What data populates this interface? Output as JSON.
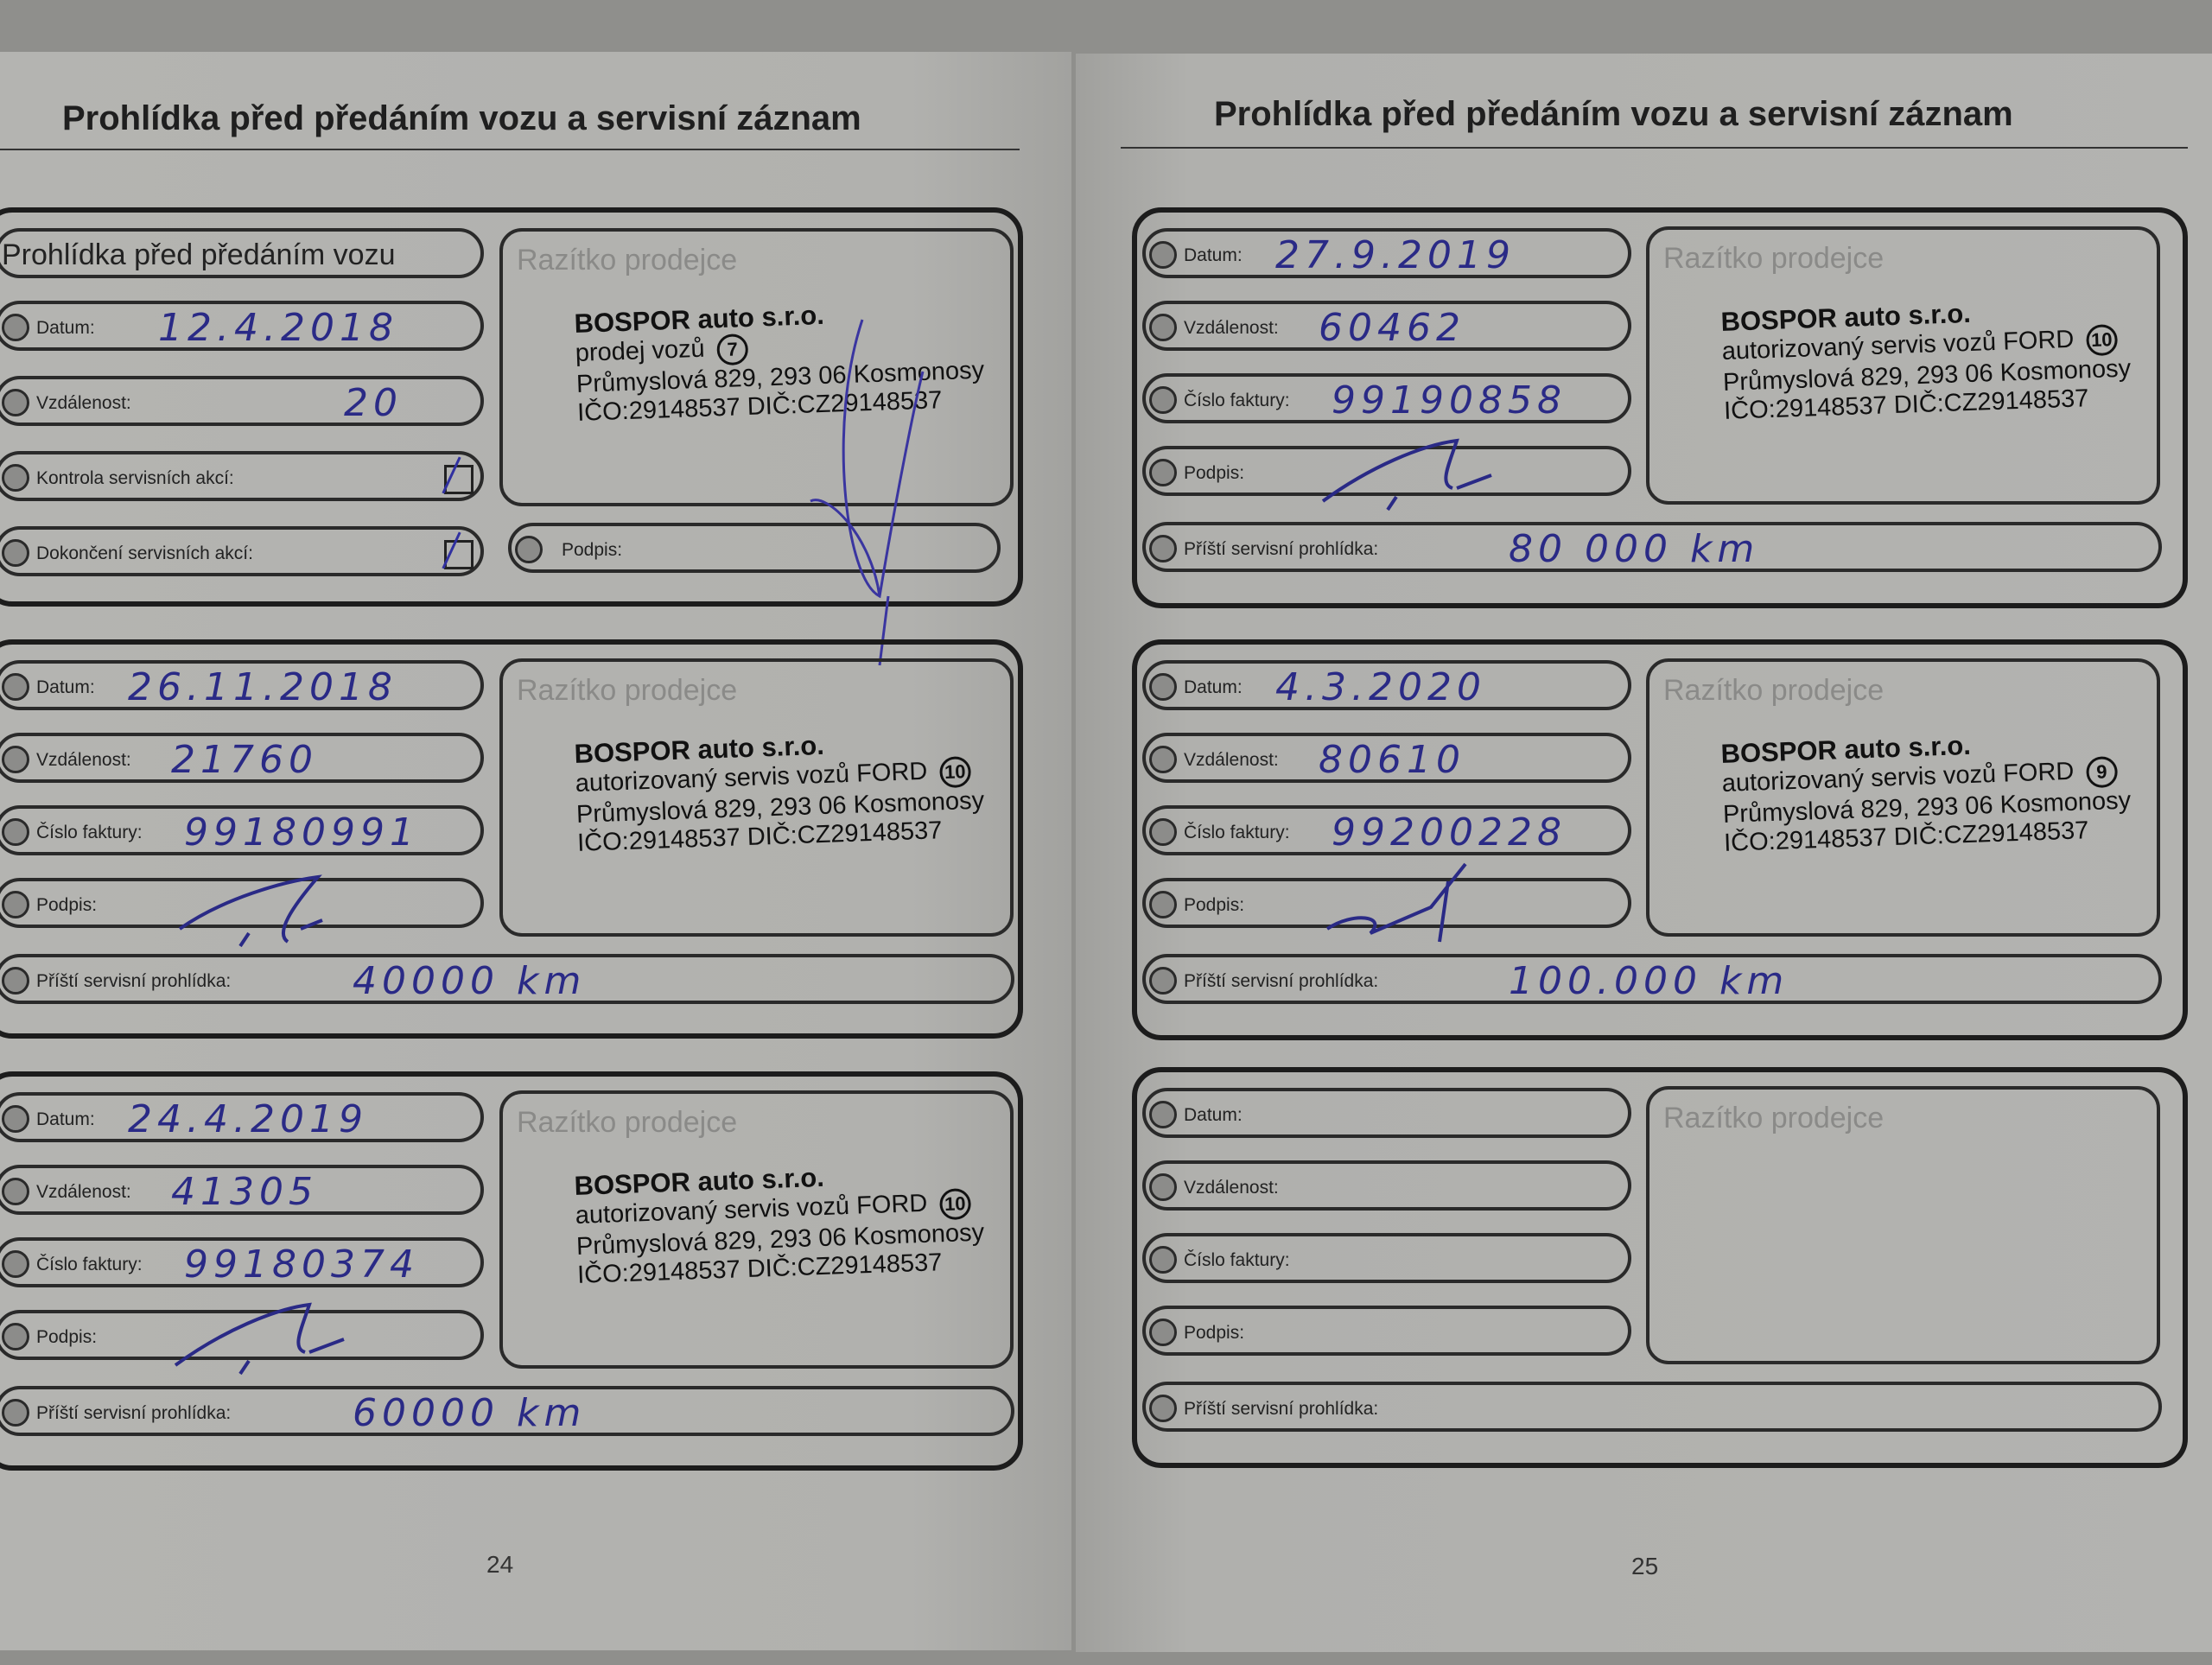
{
  "left_page": {
    "title": "Prohlídka před předáním vozu a servisní záznam",
    "page_number": "24",
    "entries": [
      {
        "type": "handover",
        "header": "Prohlídka před předáním vozu",
        "fields": [
          {
            "label": "Datum:",
            "value": "12.4.2018"
          },
          {
            "label": "Vzdálenost:",
            "value": "20"
          },
          {
            "label": "Kontrola servisních akcí:",
            "checked": true
          },
          {
            "label": "Dokončení servisních akcí:",
            "checked": true
          }
        ],
        "signature_label": "Podpis:",
        "stamp": {
          "heading": "Razítko prodejce",
          "lines": [
            "BOSPOR auto s.r.o.",
            "prodej vozů",
            "Průmyslová 829, 293 06 Kosmonosy",
            "IČO:29148537      DIČ:CZ29148537"
          ],
          "number": "7"
        }
      },
      {
        "type": "service",
        "fields": [
          {
            "label": "Datum:",
            "value": "26.11.2018"
          },
          {
            "label": "Vzdálenost:",
            "value": "21760"
          },
          {
            "label": "Číslo faktury:",
            "value": "99180991"
          },
          {
            "label": "Podpis:",
            "value": ""
          }
        ],
        "next_service": {
          "label": "Příští servisní prohlídka:",
          "value": "40000 km"
        },
        "stamp": {
          "heading": "Razítko prodejce",
          "lines": [
            "BOSPOR auto s.r.o.",
            "autorizovaný servis vozů FORD",
            "Průmyslová 829, 293 06 Kosmonosy",
            "IČO:29148537      DIČ:CZ29148537"
          ],
          "number": "10"
        }
      },
      {
        "type": "service",
        "fields": [
          {
            "label": "Datum:",
            "value": "24.4.2019"
          },
          {
            "label": "Vzdálenost:",
            "value": "41305"
          },
          {
            "label": "Číslo faktury:",
            "value": "99180374"
          },
          {
            "label": "Podpis:",
            "value": ""
          }
        ],
        "next_service": {
          "label": "Příští servisní prohlídka:",
          "value": "60000 km"
        },
        "stamp": {
          "heading": "Razítko prodejce",
          "lines": [
            "BOSPOR auto s.r.o.",
            "autorizovaný servis vozů FORD",
            "Průmyslová 829, 293 06 Kosmonosy",
            "IČO:29148537      DIČ:CZ29148537"
          ],
          "number": "10"
        }
      }
    ]
  },
  "right_page": {
    "title": "Prohlídka před předáním vozu a servisní záznam",
    "page_number": "25",
    "entries": [
      {
        "type": "service",
        "fields": [
          {
            "label": "Datum:",
            "value": "27.9.2019"
          },
          {
            "label": "Vzdálenost:",
            "value": "60462"
          },
          {
            "label": "Číslo faktury:",
            "value": "99190858"
          },
          {
            "label": "Podpis:",
            "value": ""
          }
        ],
        "next_service": {
          "label": "Příští servisní prohlídka:",
          "value": "80 000 km"
        },
        "stamp": {
          "heading": "Razítko prodejce",
          "lines": [
            "BOSPOR auto s.r.o.",
            "autorizovaný servis vozů FORD",
            "Průmyslová 829, 293 06 Kosmonosy",
            "IČO:29148537      DIČ:CZ29148537"
          ],
          "number": "10"
        }
      },
      {
        "type": "service",
        "fields": [
          {
            "label": "Datum:",
            "value": "4.3.2020"
          },
          {
            "label": "Vzdálenost:",
            "value": "80610"
          },
          {
            "label": "Číslo faktury:",
            "value": "99200228"
          },
          {
            "label": "Podpis:",
            "value": ""
          }
        ],
        "next_service": {
          "label": "Příští servisní prohlídka:",
          "value": "100.000 km"
        },
        "stamp": {
          "heading": "Razítko prodejce",
          "lines": [
            "BOSPOR auto s.r.o.",
            "autorizovaný servis vozů FORD",
            "Průmyslová 829, 293 06 Kosmonosy",
            "IČO:29148537      DIČ:CZ29148537"
          ],
          "number": "9"
        }
      },
      {
        "type": "service",
        "fields": [
          {
            "label": "Datum:",
            "value": ""
          },
          {
            "label": "Vzdálenost:",
            "value": ""
          },
          {
            "label": "Číslo faktury:",
            "value": ""
          },
          {
            "label": "Podpis:",
            "value": ""
          }
        ],
        "next_service": {
          "label": "Příští servisní prohlídka:",
          "value": ""
        },
        "stamp": {
          "heading": "Razítko prodejce",
          "lines": [],
          "number": ""
        }
      }
    ]
  },
  "colors": {
    "ink": "#2a2a86",
    "paper": "#b3b3b0",
    "print": "#1c1c1c"
  }
}
